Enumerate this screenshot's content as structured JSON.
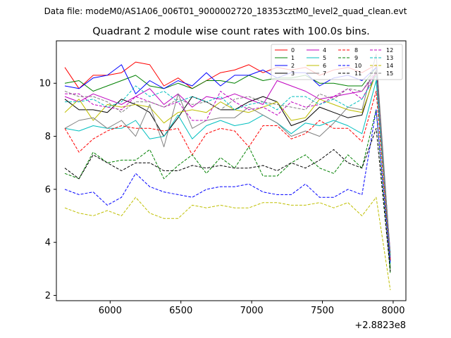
{
  "chart_data": {
    "type": "line",
    "suptitle": "Data file: modeM0/AS1A06_006T01_9000002720_18353cztM0_level2_quad_clean.evt",
    "title": "Quadrant 2 module wise count rates with 100.0s bins.",
    "xlabel": "",
    "ylabel": "",
    "x_offset_label": "+2.8823e8",
    "xlim": [
      5620,
      8090
    ],
    "ylim": [
      1.8,
      11.6
    ],
    "xticks": [
      6000,
      6500,
      7000,
      7500,
      8000
    ],
    "yticks": [
      2,
      4,
      6,
      8,
      10
    ],
    "x": [
      5680,
      5780,
      5880,
      5980,
      6080,
      6180,
      6280,
      6380,
      6480,
      6580,
      6680,
      6780,
      6880,
      6980,
      7080,
      7180,
      7280,
      7380,
      7480,
      7580,
      7680,
      7780,
      7880,
      7980
    ],
    "legend": {
      "placement": "top-right",
      "ncol": 4
    },
    "series": [
      {
        "name": "0",
        "color": "#ff0000",
        "dash": false,
        "values": [
          10.6,
          9.8,
          10.3,
          10.3,
          10.4,
          10.8,
          10.7,
          9.9,
          10.2,
          9.8,
          10.1,
          10.4,
          10.5,
          10.7,
          10.4,
          10.6,
          10.5,
          10.6,
          10.3,
          10.5,
          10.6,
          10.4,
          10.7,
          3.5
        ]
      },
      {
        "name": "1",
        "color": "#008000",
        "dash": false,
        "values": [
          10.0,
          10.1,
          9.7,
          9.9,
          10.1,
          10.3,
          9.9,
          9.8,
          10.0,
          9.8,
          10.1,
          10.1,
          10.0,
          10.3,
          10.1,
          10.2,
          10.2,
          10.3,
          10.0,
          10.0,
          9.9,
          9.9,
          10.6,
          3.0
        ]
      },
      {
        "name": "2",
        "color": "#0000ff",
        "dash": false,
        "values": [
          9.9,
          9.8,
          10.2,
          10.3,
          10.7,
          9.6,
          10.1,
          9.8,
          10.1,
          9.9,
          10.4,
          9.9,
          10.3,
          10.3,
          10.5,
          10.2,
          10.4,
          10.4,
          9.9,
          10.2,
          10.3,
          10.1,
          10.6,
          3.3
        ]
      },
      {
        "name": "3",
        "color": "#000000",
        "dash": false,
        "values": [
          9.4,
          9.0,
          9.0,
          8.9,
          9.4,
          9.2,
          8.9,
          8.0,
          8.7,
          9.5,
          9.3,
          9.0,
          9.0,
          9.3,
          9.5,
          9.3,
          8.4,
          8.6,
          9.1,
          8.9,
          8.7,
          8.8,
          10.5,
          3.3
        ]
      },
      {
        "name": "4",
        "color": "#bf00bf",
        "dash": false,
        "values": [
          9.5,
          9.3,
          9.6,
          9.4,
          9.2,
          9.5,
          9.8,
          9.2,
          9.6,
          9.1,
          9.5,
          9.4,
          9.6,
          9.4,
          9.2,
          10.1,
          9.9,
          9.7,
          9.4,
          9.5,
          9.6,
          9.7,
          10.4,
          3.4
        ]
      },
      {
        "name": "5",
        "color": "#00bfbf",
        "dash": false,
        "values": [
          8.3,
          8.2,
          8.4,
          8.3,
          8.3,
          8.6,
          7.9,
          8.0,
          8.8,
          7.9,
          8.4,
          8.6,
          8.4,
          8.5,
          8.8,
          8.5,
          8.1,
          8.5,
          8.4,
          8.6,
          8.4,
          8.1,
          10.1,
          3.2
        ]
      },
      {
        "name": "6",
        "color": "#bfbf00",
        "dash": false,
        "values": [
          8.9,
          9.4,
          8.6,
          9.2,
          9.1,
          9.2,
          9.1,
          8.5,
          8.9,
          9.0,
          8.9,
          9.3,
          9.0,
          8.9,
          9.1,
          9.3,
          8.6,
          8.7,
          9.4,
          9.2,
          9.0,
          8.9,
          10.4,
          3.3
        ]
      },
      {
        "name": "7",
        "color": "#808080",
        "dash": false,
        "values": [
          8.3,
          8.6,
          8.7,
          8.3,
          8.6,
          8.0,
          9.2,
          7.6,
          9.6,
          8.3,
          8.6,
          8.7,
          8.7,
          9.1,
          8.8,
          8.5,
          8.0,
          8.2,
          8.0,
          8.5,
          9.1,
          9.0,
          11.1,
          3.4
        ]
      },
      {
        "name": "8",
        "color": "#ff0000",
        "dash": true,
        "values": [
          8.3,
          7.4,
          7.9,
          8.2,
          8.4,
          8.3,
          8.3,
          8.2,
          8.3,
          7.3,
          8.1,
          8.3,
          8.2,
          7.6,
          8.4,
          8.4,
          7.9,
          8.1,
          8.6,
          8.3,
          8.3,
          7.8,
          9.7,
          3.3
        ]
      },
      {
        "name": "9",
        "color": "#008000",
        "dash": true,
        "values": [
          6.6,
          6.4,
          7.4,
          7.0,
          7.1,
          7.1,
          7.5,
          6.4,
          6.9,
          7.3,
          6.6,
          7.2,
          6.8,
          7.6,
          6.5,
          6.5,
          7.0,
          7.3,
          6.8,
          6.6,
          7.3,
          6.8,
          9.0,
          2.8
        ]
      },
      {
        "name": "10",
        "color": "#0000ff",
        "dash": true,
        "values": [
          6.0,
          5.8,
          5.9,
          5.4,
          5.7,
          6.6,
          6.1,
          5.9,
          5.8,
          5.7,
          6.0,
          6.1,
          6.1,
          6.2,
          5.9,
          5.8,
          5.8,
          6.2,
          5.7,
          5.7,
          6.0,
          5.8,
          9.0,
          3.2
        ]
      },
      {
        "name": "11",
        "color": "#000000",
        "dash": true,
        "values": [
          6.8,
          6.4,
          7.3,
          7.0,
          6.7,
          7.0,
          7.0,
          6.7,
          6.7,
          6.9,
          6.8,
          6.9,
          6.8,
          6.8,
          6.9,
          6.7,
          7.0,
          6.8,
          7.1,
          7.5,
          7.0,
          6.8,
          8.3,
          2.9
        ]
      },
      {
        "name": "12",
        "color": "#bf00bf",
        "dash": true,
        "values": [
          9.6,
          9.6,
          9.2,
          9.1,
          9.0,
          9.5,
          9.3,
          9.1,
          9.3,
          8.6,
          8.6,
          9.7,
          9.3,
          9.0,
          9.1,
          8.8,
          9.3,
          9.1,
          9.2,
          9.5,
          9.8,
          9.4,
          10.4,
          3.6
        ]
      },
      {
        "name": "13",
        "color": "#00bfbf",
        "dash": true,
        "values": [
          9.3,
          9.3,
          9.4,
          9.1,
          9.3,
          9.9,
          9.5,
          9.7,
          9.3,
          9.5,
          9.3,
          9.5,
          9.0,
          9.2,
          9.3,
          9.0,
          9.5,
          9.5,
          9.2,
          9.4,
          9.1,
          9.4,
          10.3,
          3.5
        ]
      },
      {
        "name": "14",
        "color": "#bfbf00",
        "dash": true,
        "values": [
          5.3,
          5.1,
          5.0,
          5.2,
          5.0,
          5.7,
          5.1,
          4.9,
          4.9,
          5.4,
          5.3,
          5.4,
          5.3,
          5.3,
          5.5,
          5.5,
          5.4,
          5.4,
          5.5,
          5.3,
          5.5,
          5.0,
          5.7,
          2.2
        ]
      },
      {
        "name": "15",
        "color": "#808080",
        "dash": true,
        "values": [
          9.7,
          9.5,
          9.5,
          9.3,
          8.9,
          9.3,
          9.3,
          9.1,
          9.4,
          9.2,
          9.3,
          9.0,
          9.4,
          9.5,
          9.3,
          9.2,
          9.1,
          9.0,
          9.6,
          9.4,
          9.8,
          9.7,
          10.5,
          3.6
        ]
      }
    ]
  }
}
